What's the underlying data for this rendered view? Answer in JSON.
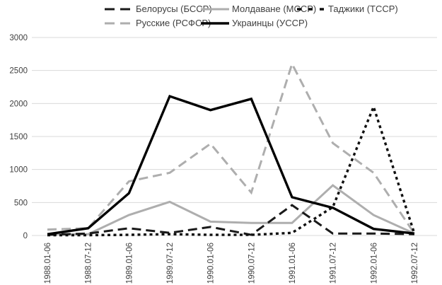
{
  "chart_data": {
    "type": "line",
    "title": "",
    "xlabel": "",
    "ylabel": "",
    "categories": [
      "1988.01-06",
      "1988.07-12",
      "1989.01-06",
      "1989.07-12",
      "1990.01-06",
      "1990.07-12",
      "1991.01-06",
      "1991.07-12",
      "1992.01-06",
      "1992.07-12"
    ],
    "series": [
      {
        "name": "Белорусы (БССР)",
        "color": "#1a1a1a",
        "line_style": "dash",
        "width": 3,
        "values": [
          10,
          30,
          110,
          40,
          130,
          10,
          460,
          30,
          30,
          20
        ]
      },
      {
        "name": "Молдаване (МССР)",
        "color": "#aeaeae",
        "line_style": "solid",
        "width": 3,
        "values": [
          20,
          20,
          310,
          510,
          210,
          190,
          190,
          760,
          310,
          30
        ]
      },
      {
        "name": "Таджики (ТССР)",
        "color": "#111111",
        "line_style": "dot",
        "width": 3.4,
        "values": [
          5,
          5,
          10,
          20,
          10,
          10,
          40,
          430,
          1950,
          30
        ]
      },
      {
        "name": "Русские (РСФСР)",
        "color": "#aeaeae",
        "line_style": "dash",
        "width": 3,
        "values": [
          90,
          110,
          820,
          950,
          1390,
          650,
          2600,
          1400,
          950,
          30
        ]
      },
      {
        "name": "Украинцы (УССР)",
        "color": "#000000",
        "line_style": "solid",
        "width": 3.4,
        "values": [
          20,
          110,
          640,
          2110,
          1900,
          2070,
          580,
          420,
          100,
          30
        ]
      }
    ],
    "ylim": [
      0,
      3000
    ],
    "yticks": [
      "0",
      "500",
      "1000",
      "1500",
      "2000",
      "2500",
      "3000"
    ],
    "grid": "horizontal",
    "legend_position": "top",
    "draw_order": [
      1,
      3,
      0,
      2,
      4
    ],
    "grid_color": "#d9d9d9",
    "axis_text_color": "#404040",
    "background_color": "#ffffff"
  }
}
